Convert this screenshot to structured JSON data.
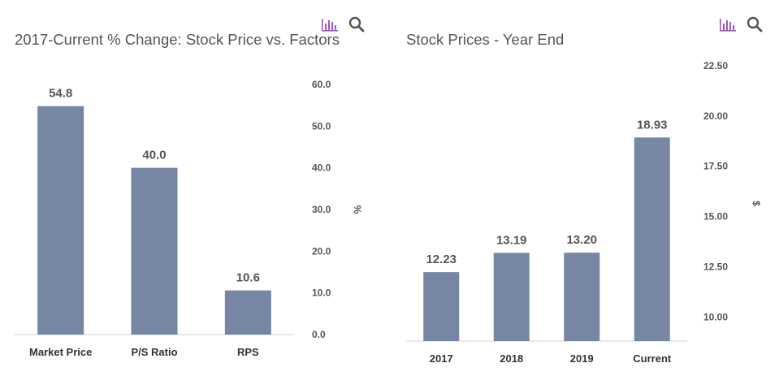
{
  "chart_data": [
    {
      "type": "bar",
      "title": "2017-Current % Change: Stock Price vs. Factors",
      "categories": [
        "Market Price",
        "P/S Ratio",
        "RPS"
      ],
      "values": [
        54.8,
        40.0,
        10.6
      ],
      "value_labels": [
        "54.8",
        "40.0",
        "10.6"
      ],
      "ylabel": "%",
      "ylim": [
        0,
        60
      ],
      "yticks": [
        "0.0",
        "10.0",
        "20.0",
        "30.0",
        "40.0",
        "50.0",
        "60.0"
      ],
      "ytick_values": [
        0,
        10,
        20,
        30,
        40,
        50,
        60
      ],
      "y_axis_side": "right",
      "grid": false,
      "bar_color": "#7686a4"
    },
    {
      "type": "bar",
      "title": "Stock Prices - Year End",
      "categories": [
        "2017",
        "2018",
        "2019",
        "Current"
      ],
      "values": [
        12.23,
        13.19,
        13.2,
        18.93
      ],
      "value_labels": [
        "12.23",
        "13.19",
        "13.20",
        "18.93"
      ],
      "ylabel": "$",
      "ylim": [
        8.8,
        22.5
      ],
      "yticks": [
        "10.00",
        "12.50",
        "15.00",
        "17.50",
        "20.00",
        "22.50"
      ],
      "ytick_values": [
        10,
        12.5,
        15,
        17.5,
        20,
        22.5
      ],
      "y_axis_side": "right",
      "grid": false,
      "bar_color": "#7686a4"
    }
  ],
  "toolbar_icons": [
    "bar-chart-icon",
    "search-icon"
  ],
  "colors": {
    "bar": "#7686a4",
    "icon": "#9b59b6",
    "title": "#555555"
  }
}
